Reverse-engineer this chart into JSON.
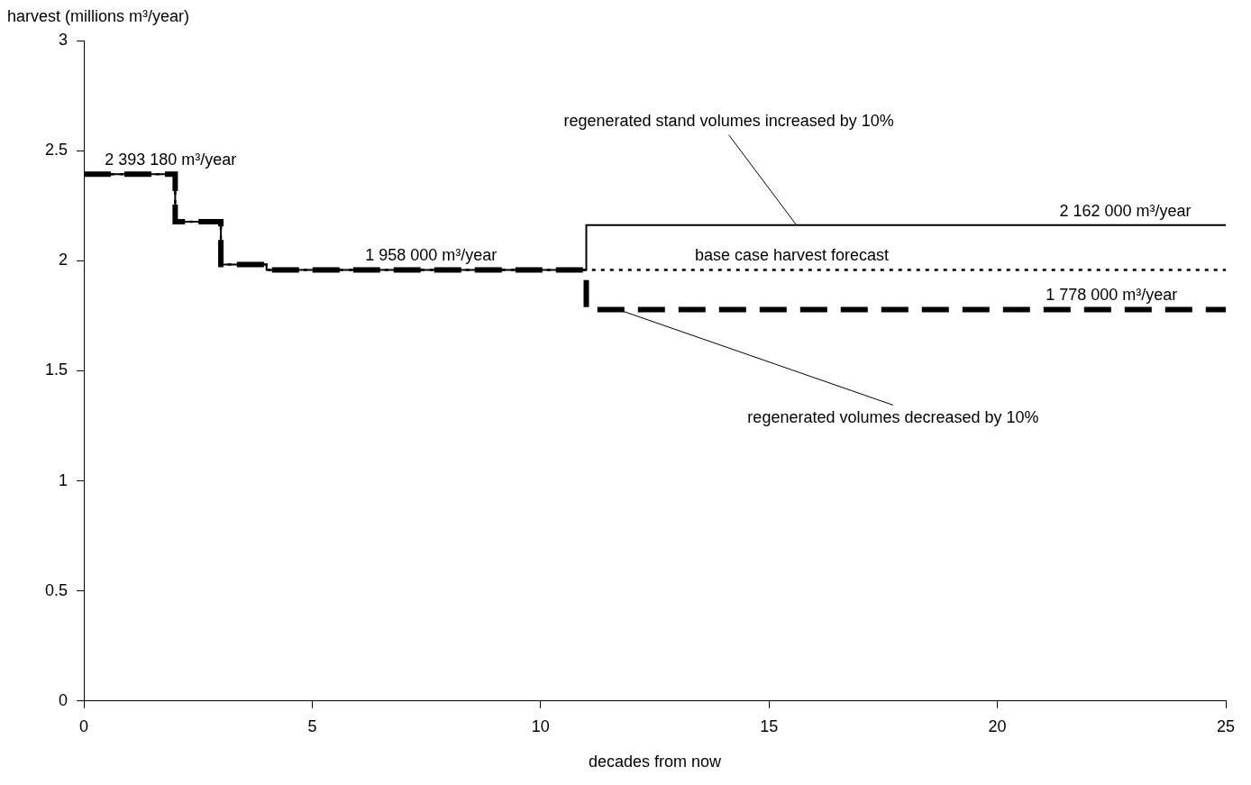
{
  "chart_data": {
    "type": "step",
    "xlabel": "decades from now",
    "ylabel": "harvest (millions m³/year)",
    "series": [
      {
        "color": "#000000",
        "line_style": "dashed",
        "x": [
          0,
          2,
          3,
          4,
          11,
          25
        ],
        "values": [
          2.393,
          2.177,
          1.983,
          1.958,
          1.778,
          1.778
        ]
      },
      {
        "color": "#000000",
        "line_style": "dotted",
        "x": [
          0,
          2,
          3,
          4,
          11,
          25
        ],
        "values": [
          2.393,
          2.177,
          1.983,
          1.958,
          1.958,
          1.958
        ]
      },
      {
        "color": "#000000",
        "line_style": "solid",
        "x": [
          0,
          2,
          3,
          4,
          11,
          25
        ],
        "values": [
          2.393,
          2.177,
          1.983,
          1.958,
          2.162,
          2.162
        ]
      }
    ],
    "xlim": [
      0,
      25
    ],
    "xticks": [
      0,
      5,
      10,
      15,
      20,
      25
    ],
    "ylim": [
      0,
      3
    ],
    "yticks": [
      0,
      0.5,
      1,
      1.5,
      2,
      2.5,
      3
    ],
    "grid": false,
    "legend": false,
    "marker": "none",
    "annotations": [
      {
        "text": "2 393 180 m³/year",
        "x": 1.9,
        "y": 2.393
      },
      {
        "text": "1 958 000 m³/year",
        "x": 7.6,
        "y": 1.958
      },
      {
        "text": "2 162 000 m³/year",
        "x": 22.8,
        "y": 2.162
      },
      {
        "text": "base case harvest forecast",
        "x": 15.5,
        "y": 1.958
      },
      {
        "text": "1 778 000 m³/year",
        "x": 22.5,
        "y": 1.778
      },
      {
        "text": "regenerated stand volumes increased by 10%",
        "x": 15.6,
        "y": 2.162
      },
      {
        "text": "regenerated volumes decreased by 10%",
        "x": 11.7,
        "y": 1.778
      }
    ]
  }
}
